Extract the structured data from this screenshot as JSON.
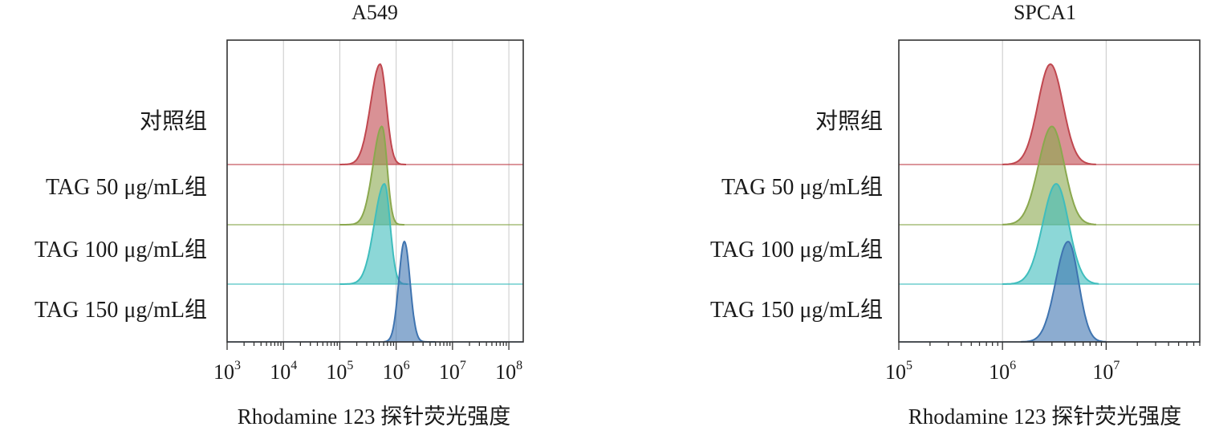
{
  "chart_data": [
    {
      "type": "area",
      "title": "A549",
      "xlabel": "Rhodamine 123 探针荧光强度",
      "x_scale": "log",
      "xlim": [
        1000,
        180000000
      ],
      "x_ticks": [
        {
          "base": "10",
          "exp": "3",
          "value": 1000
        },
        {
          "base": "10",
          "exp": "4",
          "value": 10000
        },
        {
          "base": "10",
          "exp": "5",
          "value": 100000
        },
        {
          "base": "10",
          "exp": "6",
          "value": 1000000
        },
        {
          "base": "10",
          "exp": "7",
          "value": 10000000
        },
        {
          "base": "10",
          "exp": "8",
          "value": 100000000
        }
      ],
      "grid": true,
      "series": [
        {
          "name": "对照组",
          "color": "#c0474f",
          "start": 100000,
          "end": 1500000,
          "peak": 520000,
          "left_width": 0.17,
          "right_width": 0.11,
          "height": 1.0
        },
        {
          "name": "TAG 50 μg/mL组",
          "color": "#8aa84e",
          "start": 100000,
          "end": 1400000,
          "peak": 560000,
          "left_width": 0.16,
          "right_width": 0.09,
          "height": 0.98
        },
        {
          "name": "TAG 100 μg/mL组",
          "color": "#3fbdbd",
          "start": 100000,
          "end": 1600000,
          "peak": 620000,
          "left_width": 0.18,
          "right_width": 0.1,
          "height": 1.0
        },
        {
          "name": "TAG 150 μg/mL组",
          "color": "#3f74b0",
          "start": 600000,
          "end": 5000000,
          "peak": 1400000,
          "left_width": 0.1,
          "right_width": 0.1,
          "height": 1.0
        }
      ]
    },
    {
      "type": "area",
      "title": "SPCA1",
      "xlabel": "Rhodamine 123 探针荧光强度",
      "x_scale": "log",
      "xlim": [
        100000,
        80000000
      ],
      "x_ticks": [
        {
          "base": "10",
          "exp": "5",
          "value": 100000
        },
        {
          "base": "10",
          "exp": "6",
          "value": 1000000
        },
        {
          "base": "10",
          "exp": "7",
          "value": 10000000
        }
      ],
      "grid": true,
      "series": [
        {
          "name": "对照组",
          "color": "#c0474f",
          "start": 1000000,
          "end": 8000000,
          "peak": 2900000,
          "left_width": 0.12,
          "right_width": 0.12,
          "height": 1.0
        },
        {
          "name": "TAG 50 μg/mL组",
          "color": "#8aa84e",
          "start": 1000000,
          "end": 8000000,
          "peak": 3000000,
          "left_width": 0.13,
          "right_width": 0.12,
          "height": 0.98
        },
        {
          "name": "TAG 100 μg/mL组",
          "color": "#3fbdbd",
          "start": 1000000,
          "end": 8500000,
          "peak": 3300000,
          "left_width": 0.13,
          "right_width": 0.12,
          "height": 1.0
        },
        {
          "name": "TAG 150 μg/mL组",
          "color": "#3f74b0",
          "start": 1500000,
          "end": 10000000,
          "peak": 4300000,
          "left_width": 0.12,
          "right_width": 0.1,
          "height": 1.0
        }
      ]
    }
  ]
}
